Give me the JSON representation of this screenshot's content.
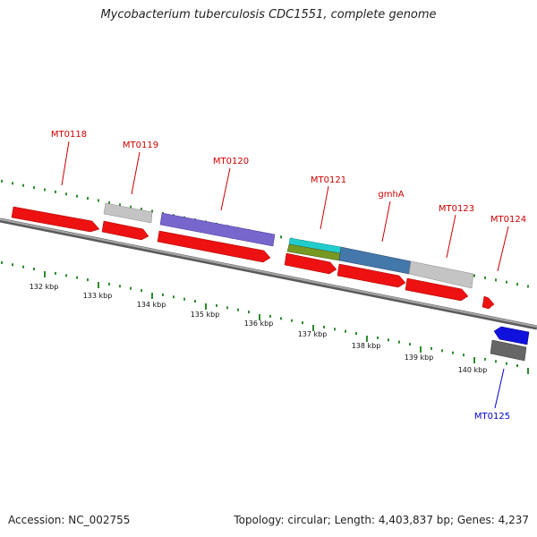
{
  "title": "Mycobacterium tuberculosis CDC1551, complete genome",
  "footer": {
    "accession": "Accession: NC_002755",
    "summary": "Topology: circular; Length: 4,403,837 bp; Genes: 4,237"
  },
  "colors": {
    "backbone": "#8a8a8a",
    "tick": "#2e8b2e",
    "label_forward": "#cc0000",
    "label_reverse": "#0000cc",
    "cds": "#ee1111",
    "unknown": "#c4c4c4",
    "purple": "#7766cc",
    "cyan": "#22cccc",
    "olive": "#779922",
    "steel": "#4477aa",
    "reverse_cds": "#1111dd",
    "reverse_other": "#666666"
  },
  "kbp_labels": [
    "132 kbp",
    "133 kbp",
    "134 kbp",
    "135 kbp",
    "136 kbp",
    "137 kbp",
    "138 kbp",
    "139 kbp",
    "140 kbp"
  ],
  "gene_labels": [
    {
      "text": "MT0118",
      "strand": "forward"
    },
    {
      "text": "MT0119",
      "strand": "forward"
    },
    {
      "text": "MT0120",
      "strand": "forward"
    },
    {
      "text": "MT0121",
      "strand": "forward"
    },
    {
      "text": "gmhA",
      "strand": "forward"
    },
    {
      "text": "MT0123",
      "strand": "forward"
    },
    {
      "text": "MT0124",
      "strand": "forward"
    },
    {
      "text": "MT0125",
      "strand": "reverse"
    }
  ]
}
